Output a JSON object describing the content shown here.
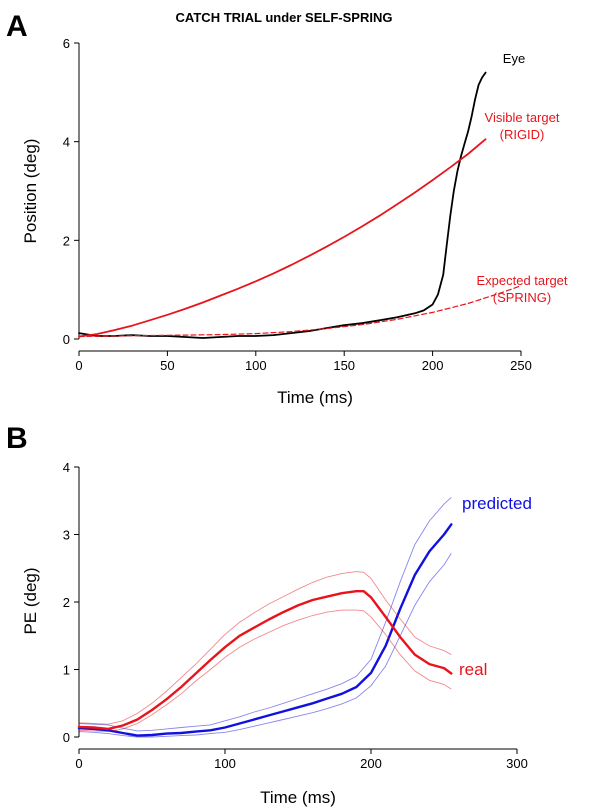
{
  "figure": {
    "panel_a_letter": "A",
    "panel_b_letter": "B"
  },
  "chart_data": [
    {
      "type": "line",
      "title": "CATCH TRIAL under SELF-SPRING",
      "xlabel": "Time (ms)",
      "ylabel": "Position (deg)",
      "xlim": [
        0,
        250
      ],
      "ylim": [
        0,
        6
      ],
      "xticks": [
        "0",
        "50",
        "100",
        "150",
        "200",
        "250"
      ],
      "yticks": [
        "0",
        "2",
        "4",
        "6"
      ],
      "grid": false,
      "series": [
        {
          "name": "Eye",
          "color": "#000000",
          "dash": "solid",
          "x": [
            0,
            10,
            20,
            30,
            40,
            50,
            60,
            70,
            80,
            90,
            100,
            110,
            120,
            130,
            140,
            150,
            160,
            170,
            180,
            190,
            195,
            200,
            203,
            206,
            208,
            210,
            212,
            214,
            216,
            218,
            220,
            222,
            224,
            226,
            228,
            230
          ],
          "y": [
            0.12,
            0.06,
            0.06,
            0.08,
            0.06,
            0.06,
            0.04,
            0.02,
            0.04,
            0.06,
            0.06,
            0.08,
            0.12,
            0.16,
            0.22,
            0.28,
            0.32,
            0.38,
            0.44,
            0.52,
            0.58,
            0.7,
            0.9,
            1.3,
            1.9,
            2.5,
            3.0,
            3.4,
            3.7,
            3.95,
            4.2,
            4.5,
            4.85,
            5.15,
            5.3,
            5.4
          ]
        },
        {
          "name": "Visible target (RIGID)",
          "color": "#e8141c",
          "dash": "solid",
          "x": [
            0,
            10,
            20,
            30,
            40,
            50,
            60,
            70,
            80,
            90,
            100,
            110,
            120,
            130,
            140,
            150,
            160,
            170,
            180,
            190,
            200,
            210,
            220,
            230
          ],
          "y": [
            0.05,
            0.1,
            0.18,
            0.27,
            0.38,
            0.49,
            0.61,
            0.74,
            0.88,
            1.02,
            1.17,
            1.33,
            1.5,
            1.68,
            1.87,
            2.07,
            2.28,
            2.5,
            2.73,
            2.97,
            3.22,
            3.48,
            3.75,
            4.05
          ]
        },
        {
          "name": "Expected target (SPRING)",
          "color": "#e8141c",
          "dash": "dashed",
          "x": [
            0,
            20,
            40,
            60,
            80,
            100,
            120,
            140,
            160,
            180,
            200,
            220,
            240,
            250
          ],
          "y": [
            0.05,
            0.06,
            0.07,
            0.08,
            0.09,
            0.11,
            0.15,
            0.21,
            0.29,
            0.4,
            0.54,
            0.72,
            0.95,
            1.08
          ]
        }
      ],
      "annotations": [
        {
          "id": "eye",
          "lines": [
            "Eye"
          ],
          "color": "#000000"
        },
        {
          "id": "visible",
          "lines": [
            "Visible target",
            "(RIGID)"
          ],
          "color": "#e8141c"
        },
        {
          "id": "expected",
          "lines": [
            "Expected target",
            "(SPRING)"
          ],
          "color": "#e8141c"
        }
      ]
    },
    {
      "type": "line",
      "title": "",
      "xlabel": "Time (ms)",
      "ylabel": "PE (deg)",
      "xlim": [
        0,
        300
      ],
      "ylim": [
        0,
        4
      ],
      "xticks": [
        "0",
        "100",
        "200",
        "300"
      ],
      "yticks": [
        "0",
        "1",
        "2",
        "3",
        "4"
      ],
      "grid": false,
      "series": [
        {
          "name": "predicted",
          "color": "#1010e0",
          "x": [
            0,
            10,
            20,
            30,
            40,
            50,
            60,
            70,
            80,
            90,
            100,
            110,
            120,
            130,
            140,
            150,
            160,
            170,
            180,
            190,
            200,
            210,
            220,
            230,
            240,
            250,
            255
          ],
          "y": [
            0.13,
            0.12,
            0.1,
            0.06,
            0.02,
            0.03,
            0.05,
            0.06,
            0.08,
            0.1,
            0.14,
            0.2,
            0.26,
            0.32,
            0.38,
            0.44,
            0.5,
            0.57,
            0.64,
            0.74,
            0.95,
            1.35,
            1.9,
            2.4,
            2.75,
            3.0,
            3.15
          ],
          "upper": [
            0.2,
            0.19,
            0.18,
            0.13,
            0.09,
            0.1,
            0.12,
            0.14,
            0.16,
            0.18,
            0.24,
            0.3,
            0.37,
            0.43,
            0.5,
            0.57,
            0.64,
            0.71,
            0.79,
            0.9,
            1.15,
            1.7,
            2.3,
            2.85,
            3.2,
            3.45,
            3.55
          ],
          "lower": [
            0.08,
            0.07,
            0.05,
            0.02,
            0.0,
            0.0,
            0.01,
            0.02,
            0.03,
            0.05,
            0.07,
            0.11,
            0.16,
            0.21,
            0.26,
            0.31,
            0.36,
            0.42,
            0.49,
            0.58,
            0.76,
            1.05,
            1.5,
            1.95,
            2.3,
            2.55,
            2.72
          ]
        },
        {
          "name": "real",
          "color": "#e8141c",
          "x": [
            0,
            10,
            20,
            30,
            40,
            50,
            60,
            70,
            80,
            90,
            100,
            110,
            120,
            130,
            140,
            150,
            160,
            170,
            180,
            190,
            195,
            200,
            210,
            220,
            230,
            240,
            250,
            255
          ],
          "y": [
            0.15,
            0.14,
            0.12,
            0.17,
            0.26,
            0.4,
            0.56,
            0.74,
            0.94,
            1.14,
            1.33,
            1.5,
            1.62,
            1.74,
            1.85,
            1.95,
            2.03,
            2.08,
            2.13,
            2.16,
            2.16,
            2.07,
            1.78,
            1.48,
            1.22,
            1.08,
            1.02,
            0.94
          ],
          "upper": [
            0.21,
            0.2,
            0.19,
            0.24,
            0.35,
            0.5,
            0.68,
            0.88,
            1.08,
            1.3,
            1.52,
            1.7,
            1.84,
            1.97,
            2.08,
            2.19,
            2.29,
            2.37,
            2.42,
            2.45,
            2.44,
            2.35,
            2.03,
            1.75,
            1.48,
            1.35,
            1.28,
            1.22
          ],
          "lower": [
            0.1,
            0.09,
            0.08,
            0.12,
            0.2,
            0.33,
            0.48,
            0.64,
            0.83,
            1.0,
            1.18,
            1.33,
            1.45,
            1.55,
            1.65,
            1.73,
            1.8,
            1.85,
            1.88,
            1.88,
            1.87,
            1.78,
            1.52,
            1.22,
            0.98,
            0.84,
            0.78,
            0.71
          ]
        }
      ]
    }
  ]
}
